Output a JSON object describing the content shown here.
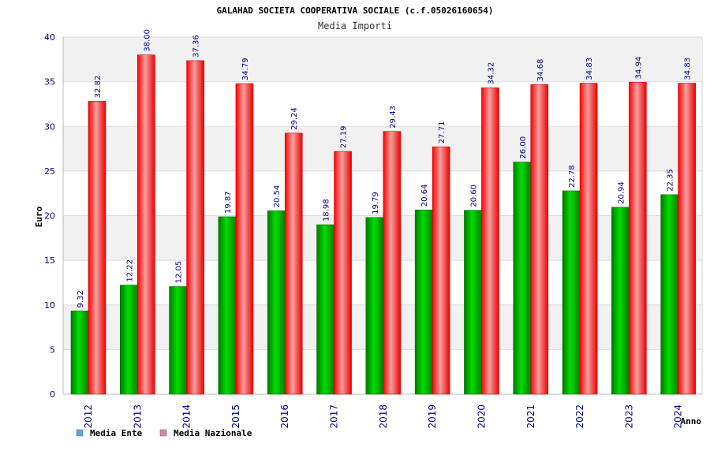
{
  "chart_data": {
    "type": "bar",
    "title": "GALAHAD SOCIETA COOPERATIVA SOCIALE (c.f.05026160654)",
    "subtitle": "Media Importi",
    "xlabel": "Anno",
    "ylabel": "Euro",
    "categories": [
      "2012",
      "2013",
      "2014",
      "2015",
      "2016",
      "2017",
      "2018",
      "2019",
      "2020",
      "2021",
      "2022",
      "2023",
      "2024"
    ],
    "series": [
      {
        "name": "Media Ente",
        "values": [
          9.32,
          12.22,
          12.05,
          19.87,
          20.54,
          18.98,
          19.79,
          20.64,
          20.6,
          26.0,
          22.78,
          20.94,
          22.35
        ],
        "labels": [
          "9.32",
          "12.22",
          "12.05",
          "19.87",
          "20.54",
          "18.98",
          "19.79",
          "20.64",
          "20.60",
          "26.00",
          "22.78",
          "20.94",
          "22.35"
        ],
        "color": "#00b000",
        "legend_color": "#5ba3f0"
      },
      {
        "name": "Media Nazionale",
        "values": [
          32.82,
          38.0,
          37.36,
          34.79,
          29.24,
          27.19,
          29.43,
          27.71,
          34.32,
          34.68,
          34.83,
          34.94,
          34.83
        ],
        "labels": [
          "32.82",
          "38.00",
          "37.36",
          "34.79",
          "29.24",
          "27.19",
          "29.43",
          "27.71",
          "34.32",
          "34.68",
          "34.83",
          "34.94",
          "34.83"
        ],
        "color": "#f01010",
        "legend_color": "#e07fb0"
      }
    ],
    "ylim": [
      0,
      40
    ],
    "yticks": [
      0,
      5,
      10,
      15,
      20,
      25,
      30,
      35,
      40
    ],
    "grid": true,
    "legend_position": "bottom-left"
  }
}
